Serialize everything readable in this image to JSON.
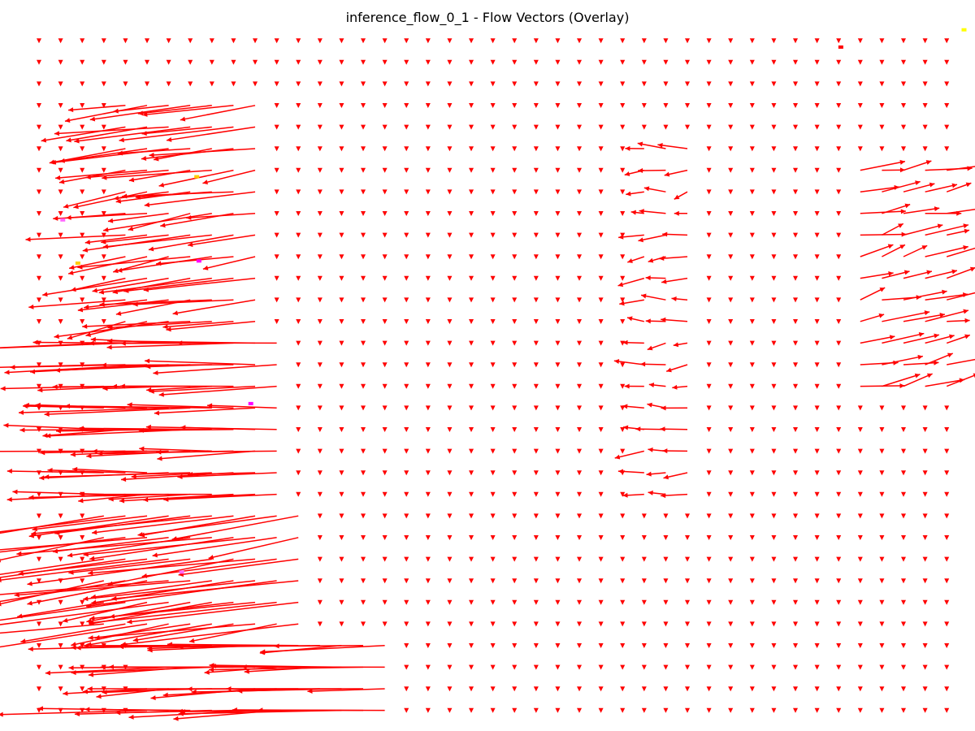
{
  "figure": {
    "title": "inference_flow_0_1 - Flow Vectors (Overlay)"
  },
  "chart_data": {
    "type": "quiver",
    "title": "inference_flow_0_1 - Flow Vectors (Overlay)",
    "xlabel": "",
    "ylabel": "",
    "axes_visible": false,
    "grid": false,
    "legend": "none",
    "arrow_color": "#ff0000",
    "background_color": "#ffffff",
    "grid_spacing": 26.6,
    "columns": 43,
    "rows": 32,
    "x_range": [
      0,
      42
    ],
    "y_range": [
      0,
      31
    ],
    "base_vector": [
      0.0,
      0.12
    ],
    "regions": [
      {
        "name": "left-cluster-upper",
        "rows": [
          3,
          13
        ],
        "cols": [
          4,
          10
        ],
        "dx": -4.0,
        "dy": 0.5
      },
      {
        "name": "left-cluster-middle",
        "rows": [
          14,
          21
        ],
        "cols": [
          3,
          11
        ],
        "dx": -5.0,
        "dy": 0.1
      },
      {
        "name": "left-cluster-lower",
        "rows": [
          22,
          27
        ],
        "cols": [
          3,
          12
        ],
        "dx": -6.5,
        "dy": 0.9
      },
      {
        "name": "bottom-band",
        "rows": [
          28,
          31
        ],
        "cols": [
          5,
          16
        ],
        "dx": -5.5,
        "dy": 0.15
      },
      {
        "name": "middle-right-cluster",
        "rows": [
          5,
          21
        ],
        "cols": [
          28,
          30
        ],
        "dx": -1.0,
        "dy": 0.05
      },
      {
        "name": "far-right-cluster",
        "rows": [
          6,
          16
        ],
        "cols": [
          38,
          42
        ],
        "dx": 1.6,
        "dy": -0.3
      }
    ],
    "overlay_marks": [
      {
        "color": "#ffff00",
        "col": 42.8,
        "row": -0.5
      },
      {
        "color": "#ff0000",
        "col": 37.1,
        "row": 0.3
      },
      {
        "color": "#ff66ff",
        "col": 1.1,
        "row": 8.3
      },
      {
        "color": "#ffcc00",
        "col": 1.8,
        "row": 10.3
      },
      {
        "color": "#ff00ff",
        "col": 7.4,
        "row": 10.2
      },
      {
        "color": "#ff00ff",
        "col": 9.8,
        "row": 16.8
      },
      {
        "color": "#ff66ff",
        "col": 6.6,
        "row": 24.6
      },
      {
        "color": "#ffcc00",
        "col": 7.3,
        "row": 6.3
      }
    ]
  }
}
